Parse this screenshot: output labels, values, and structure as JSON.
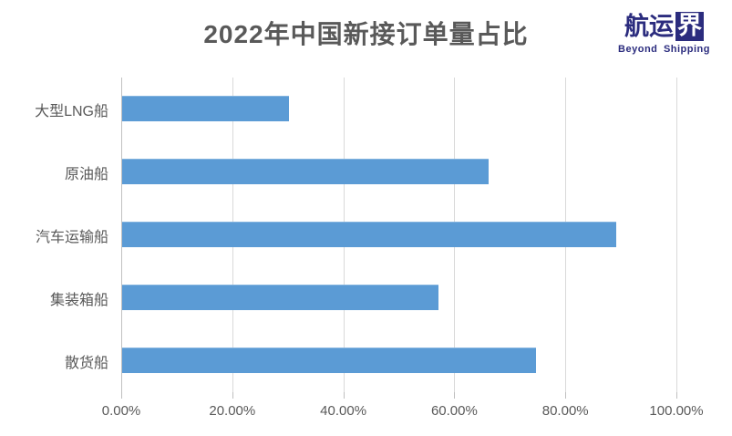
{
  "title": "2022年中国新接订单量占比",
  "logo": {
    "brand_prefix": "航运",
    "brand_boxed": "界",
    "tagline": "Beyond Shipping"
  },
  "chart_data": {
    "type": "bar",
    "orientation": "horizontal",
    "title": "2022年中国新接订单量占比",
    "categories": [
      "大型LNG船",
      "原油船",
      "汽车运输船",
      "集装箱船",
      "散货船"
    ],
    "values": [
      30,
      66,
      89,
      57,
      74.5
    ],
    "value_unit": "%",
    "xlim": [
      0,
      100
    ],
    "x_tick_values": [
      0,
      20,
      40,
      60,
      80,
      100
    ],
    "x_tick_labels": [
      "0.00%",
      "20.00%",
      "40.00%",
      "60.00%",
      "80.00%",
      "100.00%"
    ],
    "grid": "vertical-only",
    "legend": "none",
    "data_labels": "none"
  },
  "colors": {
    "bar": "#5B9BD5",
    "text": "#595959",
    "gridline": "#D9D9D9",
    "axis": "#BFBFBF",
    "logo_navy": "#2B2C7E",
    "background": "#FFFFFF"
  }
}
